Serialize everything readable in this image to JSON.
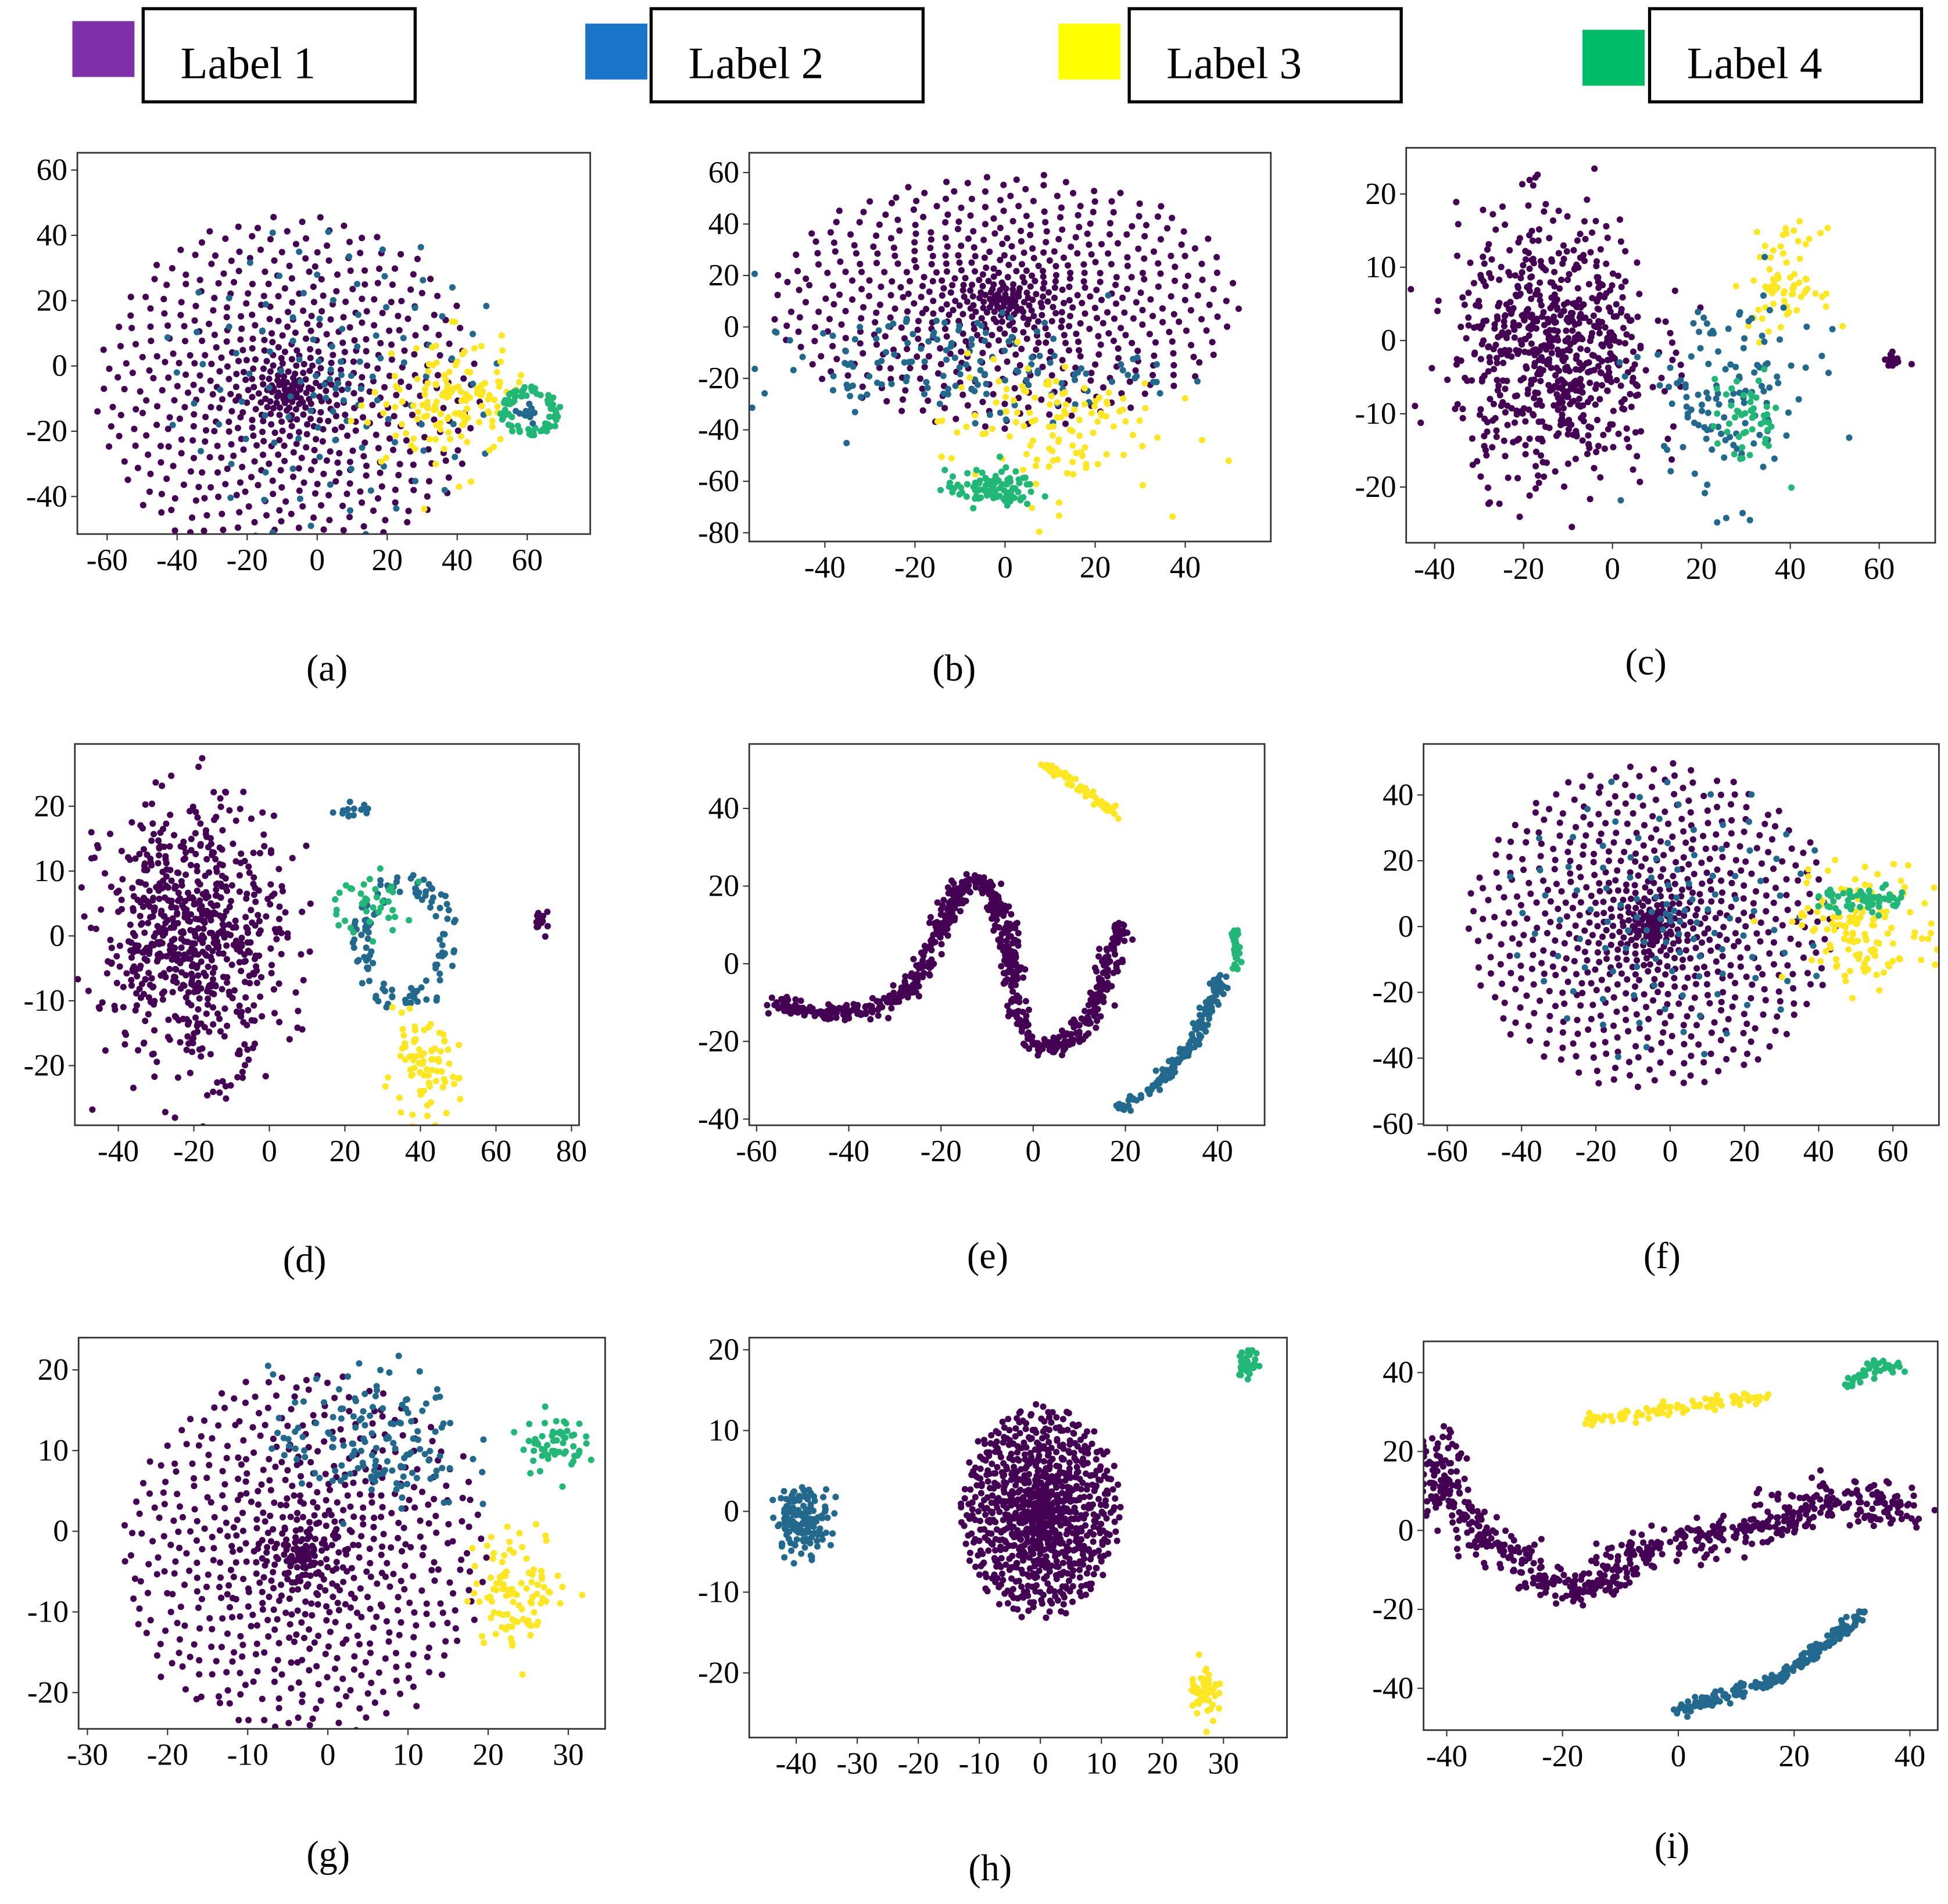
{
  "chart_data": {
    "type": "scatter",
    "legend": {
      "placement": "top",
      "entries": [
        {
          "label": "Label 1",
          "color": "#8030a8"
        },
        {
          "label": "Label 2",
          "color": "#1a74c8"
        },
        {
          "label": "Label 3",
          "color": "#ffff00"
        },
        {
          "label": "Label 4",
          "color": "#00bb66"
        }
      ]
    },
    "point_colors": {
      "1": "#440154",
      "2": "#23698e",
      "3": "#fde725",
      "4": "#22b777"
    },
    "panels": [
      {
        "label": "(a)",
        "xlim": [
          -68.5,
          78
        ],
        "ylim": [
          -51.5,
          65.3
        ],
        "xticks": [
          -60,
          -40,
          -20,
          0,
          20,
          40,
          60
        ],
        "yticks": [
          -40,
          -20,
          0,
          20,
          40,
          60
        ],
        "clusters": [
          {
            "cls": 1,
            "kind": "radial",
            "c": [
              -8,
              -8
            ],
            "r": 55,
            "n": 650
          },
          {
            "cls": 2,
            "kind": "radial",
            "c": [
              5,
              -5
            ],
            "r": 50,
            "n": 120
          },
          {
            "cls": 3,
            "kind": "blob",
            "c": [
              38,
              -10
            ],
            "s": [
              9,
              9
            ],
            "n": 140
          },
          {
            "cls": 4,
            "kind": "ring",
            "c": [
              61,
              -14
            ],
            "s": [
              8,
              7
            ],
            "n": 80
          },
          {
            "cls": 2,
            "kind": "blob",
            "c": [
              60,
              -14
            ],
            "s": [
              1.5,
              1.5
            ],
            "n": 15
          }
        ]
      },
      {
        "label": "(b)",
        "xlim": [
          -56.8,
          59
        ],
        "ylim": [
          -83.4,
          67.7
        ],
        "xticks": [
          -40,
          -20,
          0,
          20,
          40
        ],
        "yticks": [
          -80,
          -60,
          -40,
          -20,
          0,
          20,
          40,
          60
        ],
        "clusters": [
          {
            "cls": 1,
            "kind": "radialxy",
            "c": [
              0,
              10
            ],
            "s": [
              52,
              50
            ],
            "n": 650
          },
          {
            "cls": 2,
            "kind": "blob",
            "c": [
              -12,
              -15
            ],
            "s": [
              22,
              10
            ],
            "n": 150
          },
          {
            "cls": 3,
            "kind": "blob",
            "c": [
              10,
              -38
            ],
            "s": [
              12,
              14
            ],
            "n": 120
          },
          {
            "cls": 4,
            "kind": "blob",
            "c": [
              -3,
              -63
            ],
            "s": [
              5,
              3.5
            ],
            "n": 100
          }
        ]
      },
      {
        "label": "(c)",
        "xlim": [
          -46.4,
          72.6
        ],
        "ylim": [
          -27.6,
          26.3
        ],
        "xticks": [
          -40,
          -20,
          0,
          20,
          40,
          60
        ],
        "yticks": [
          -20,
          -10,
          0,
          10,
          20
        ],
        "clusters": [
          {
            "cls": 1,
            "kind": "blob",
            "c": [
              -13,
              -1
            ],
            "s": [
              11,
              9
            ],
            "n": 700
          },
          {
            "cls": 3,
            "kind": "blob",
            "c": [
              39,
              8
            ],
            "s": [
              4,
              3.5
            ],
            "n": 70
          },
          {
            "cls": 2,
            "kind": "blob",
            "c": [
              26,
              -8
            ],
            "s": [
              10,
              7
            ],
            "n": 130
          },
          {
            "cls": 4,
            "kind": "blob",
            "c": [
              30,
              -11
            ],
            "s": [
              4,
              3
            ],
            "n": 50
          },
          {
            "cls": 1,
            "kind": "blob",
            "c": [
              63,
              -2.5
            ],
            "s": [
              1,
              0.8
            ],
            "n": 15
          }
        ]
      },
      {
        "label": "(d)",
        "xlim": [
          -51.5,
          82
        ],
        "ylim": [
          -29.2,
          29.6
        ],
        "xticks": [
          -40,
          -20,
          0,
          20,
          40,
          60,
          80
        ],
        "yticks": [
          -20,
          -10,
          0,
          10,
          20
        ],
        "clusters": [
          {
            "cls": 1,
            "kind": "blob",
            "c": [
              -20,
              0
            ],
            "s": [
              12,
              10
            ],
            "n": 700
          },
          {
            "cls": 2,
            "kind": "ring",
            "c": [
              36,
              -1
            ],
            "s": [
              13,
              10
            ],
            "n": 120
          },
          {
            "cls": 4,
            "kind": "blob",
            "c": [
              25,
              5
            ],
            "s": [
              6,
              2.5
            ],
            "n": 40
          },
          {
            "cls": 3,
            "kind": "blob",
            "c": [
              40,
              -21
            ],
            "s": [
              5,
              3.5
            ],
            "n": 80
          },
          {
            "cls": 1,
            "kind": "blob",
            "c": [
              72,
              2.5
            ],
            "s": [
              1,
              1
            ],
            "n": 15
          },
          {
            "cls": 2,
            "kind": "blob",
            "c": [
              21,
              19
            ],
            "s": [
              3,
              0.8
            ],
            "n": 15
          }
        ]
      },
      {
        "label": "(e)",
        "xlim": [
          -61.6,
          50.2
        ],
        "ylim": [
          -41.6,
          56.6
        ],
        "xticks": [
          -60,
          -40,
          -20,
          0,
          20,
          40
        ],
        "yticks": [
          -40,
          -20,
          0,
          20,
          40
        ],
        "clusters": [
          {
            "cls": 1,
            "kind": "curve",
            "n": 700,
            "jitter": 1.2,
            "path": [
              [
                -57,
                -10
              ],
              [
                -45,
                -13
              ],
              [
                -35,
                -12
              ],
              [
                -26,
                -6
              ],
              [
                -20,
                10
              ],
              [
                -15,
                21
              ],
              [
                -10,
                21
              ],
              [
                -6,
                10
              ],
              [
                -4,
                -10
              ],
              [
                0,
                -21
              ],
              [
                5,
                -22
              ],
              [
                12,
                -15
              ],
              [
                17,
                0
              ],
              [
                19,
                10
              ],
              [
                21,
                9
              ]
            ]
          },
          {
            "cls": 3,
            "kind": "curve",
            "n": 60,
            "jitter": 0.6,
            "path": [
              [
                1,
                52
              ],
              [
                6,
                49
              ],
              [
                13,
                43
              ],
              [
                19,
                38
              ]
            ]
          },
          {
            "cls": 2,
            "kind": "curve",
            "n": 150,
            "jitter": 0.8,
            "path": [
              [
                19,
                -37
              ],
              [
                27,
                -31
              ],
              [
                35,
                -20
              ],
              [
                40,
                -6
              ],
              [
                41,
                -3
              ]
            ]
          },
          {
            "cls": 4,
            "kind": "curve",
            "n": 30,
            "jitter": 0.5,
            "path": [
              [
                44,
                -1
              ],
              [
                44,
                10
              ]
            ]
          }
        ]
      },
      {
        "label": "(f)",
        "xlim": [
          -66.4,
          72.4
        ],
        "ylim": [
          -60.4,
          55.5
        ],
        "xticks": [
          -60,
          -40,
          -20,
          0,
          20,
          40,
          60
        ],
        "yticks": [
          -60,
          -40,
          -20,
          0,
          20,
          40
        ],
        "clusters": [
          {
            "cls": 1,
            "kind": "radial",
            "c": [
              -5,
              0
            ],
            "r": 50,
            "n": 700
          },
          {
            "cls": 2,
            "kind": "radial",
            "c": [
              0,
              3
            ],
            "r": 45,
            "n": 120
          },
          {
            "cls": 3,
            "kind": "blob",
            "c": [
              52,
              0
            ],
            "s": [
              10,
              9
            ],
            "n": 140
          },
          {
            "cls": 4,
            "kind": "blob",
            "c": [
              53,
              8
            ],
            "s": [
              6,
              2
            ],
            "n": 60
          }
        ]
      },
      {
        "label": "(g)",
        "xlim": [
          -31.1,
          34.6
        ],
        "ylim": [
          -24.5,
          24
        ],
        "xticks": [
          -30,
          -20,
          -10,
          0,
          10,
          20,
          30
        ],
        "yticks": [
          -20,
          -10,
          0,
          10,
          20
        ],
        "clusters": [
          {
            "cls": 1,
            "kind": "radial",
            "c": [
              -3,
              -3
            ],
            "r": 23,
            "n": 700
          },
          {
            "cls": 2,
            "kind": "blob",
            "c": [
              5,
              11
            ],
            "s": [
              6,
              4.5
            ],
            "n": 150
          },
          {
            "cls": 3,
            "kind": "blob",
            "c": [
              24,
              -7
            ],
            "s": [
              3,
              3.5
            ],
            "n": 100
          },
          {
            "cls": 4,
            "kind": "blob",
            "c": [
              28,
              11
            ],
            "s": [
              2,
              1.8
            ],
            "n": 60
          }
        ]
      },
      {
        "label": "(h)",
        "xlim": [
          -47.7,
          40.4
        ],
        "ylim": [
          -28,
          21.5
        ],
        "xticks": [
          -40,
          -30,
          -20,
          -10,
          0,
          10,
          20,
          30
        ],
        "yticks": [
          -20,
          -10,
          0,
          10,
          20
        ],
        "clusters": [
          {
            "cls": 1,
            "kind": "radial",
            "c": [
              0,
              0
            ],
            "r": 13,
            "n": 900
          },
          {
            "cls": 2,
            "kind": "blob",
            "c": [
              -39,
              -1
            ],
            "s": [
              2.2,
              2
            ],
            "n": 150
          },
          {
            "cls": 3,
            "kind": "blob",
            "c": [
              27,
              -22
            ],
            "s": [
              1.2,
              1.8
            ],
            "n": 50
          },
          {
            "cls": 4,
            "kind": "blob",
            "c": [
              34,
              18
            ],
            "s": [
              0.9,
              1
            ],
            "n": 30
          }
        ]
      },
      {
        "label": "(i)",
        "xlim": [
          -44,
          44.8
        ],
        "ylim": [
          -50.6,
          47.9
        ],
        "xticks": [
          -40,
          -20,
          0,
          20,
          40
        ],
        "yticks": [
          -40,
          -20,
          0,
          20,
          40
        ],
        "clusters": [
          {
            "cls": 1,
            "kind": "curve",
            "n": 650,
            "jitter": 2.5,
            "path": [
              [
                -42,
                22
              ],
              [
                -40,
                10
              ],
              [
                -35,
                0
              ],
              [
                -28,
                -8
              ],
              [
                -20,
                -15
              ],
              [
                -14,
                -14
              ],
              [
                -8,
                -6
              ],
              [
                0,
                -4
              ],
              [
                10,
                0
              ],
              [
                20,
                5
              ],
              [
                26,
                8
              ],
              [
                32,
                6
              ],
              [
                40,
                5
              ]
            ]
          },
          {
            "cls": 3,
            "kind": "curve",
            "n": 100,
            "jitter": 0.8,
            "path": [
              [
                -16,
                28
              ],
              [
                15,
                34
              ]
            ]
          },
          {
            "cls": 2,
            "kind": "curve",
            "n": 200,
            "jitter": 0.8,
            "path": [
              [
                0,
                -46
              ],
              [
                18,
                -37
              ],
              [
                32,
                -21
              ]
            ]
          },
          {
            "cls": 4,
            "kind": "curve",
            "n": 40,
            "jitter": 0.8,
            "path": [
              [
                29,
                37
              ],
              [
                34,
                42
              ],
              [
                39,
                41
              ]
            ]
          }
        ]
      }
    ]
  }
}
